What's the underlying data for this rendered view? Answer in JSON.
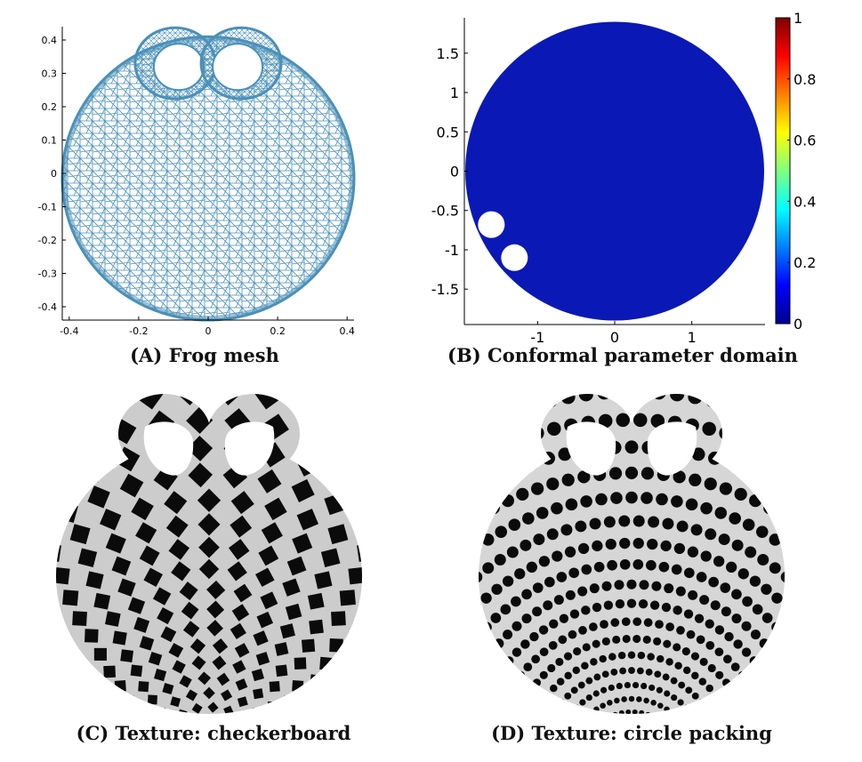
{
  "captions": {
    "a": "(A) Frog mesh",
    "b": "(B) Conformal parameter domain",
    "c": "(C) Texture: checkerboard",
    "d": "(D) Texture: circle packing"
  },
  "colors": {
    "mesh": "#4a90b8",
    "domain_fill": "#0a19b5",
    "checker_dark": "#0b0b0b",
    "checker_light": "#cccccc",
    "dots_bg": "#d6d6d6",
    "dots_fg": "#0b0b0b"
  },
  "chart_data": [
    {
      "type": "scatter",
      "x_ticks": [
        "-0.4",
        "-0.2",
        "0",
        "0.2",
        "0.4"
      ],
      "y_ticks": [
        "0.4",
        "0.3",
        "0.2",
        "0.1",
        "0",
        "-0.1",
        "-0.2",
        "-0.3",
        "-0.4"
      ],
      "xlim": [
        -0.42,
        0.42
      ],
      "ylim": [
        -0.44,
        0.44
      ]
    },
    {
      "type": "heatmap",
      "x_ticks": [
        "-1",
        "0",
        "1"
      ],
      "y_ticks": [
        "1.5",
        "1",
        "0.5",
        "0",
        "-0.5",
        "-1",
        "-1.5"
      ],
      "colorbar_ticks": [
        "1",
        "0.8",
        "0.6",
        "0.4",
        "0.2",
        "0"
      ],
      "colorbar_range": [
        0,
        1
      ],
      "colormap": "jet",
      "xlim": [
        -1.95,
        1.95
      ],
      "ylim": [
        -1.95,
        1.95
      ]
    }
  ]
}
